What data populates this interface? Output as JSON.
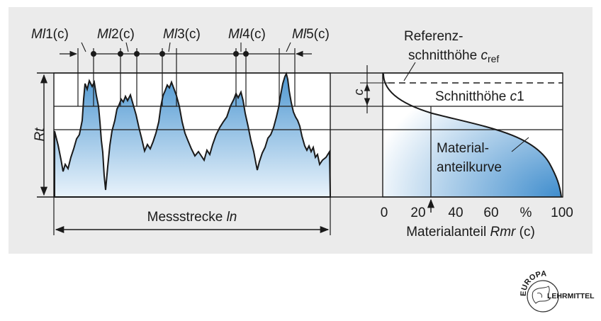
{
  "diagram": {
    "ml_labels": [
      {
        "ml": "Ml",
        "num": "1",
        "suffix": "(c)"
      },
      {
        "ml": "Ml",
        "num": "2",
        "suffix": "(c)"
      },
      {
        "ml": "Ml",
        "num": "3",
        "suffix": "(c)"
      },
      {
        "ml": "Ml",
        "num": "4",
        "suffix": "(c)"
      },
      {
        "ml": "Ml",
        "num": "5",
        "suffix": "(c)"
      }
    ],
    "rt_label": "Rt",
    "length": {
      "text": "Messstrecke ",
      "symbol": "ln"
    },
    "c_label": "c",
    "ref_line1": "Referenz-",
    "ref_line2_text": "schnitthöhe ",
    "ref_line2_symbol": "c",
    "ref_line2_sub": "ref",
    "cut_text": "Schnitthöhe ",
    "cut_symbol": "c",
    "cut_num": "1",
    "curve_line1": "Material-",
    "curve_line2": "anteilkurve",
    "x_ticks": [
      "0",
      "20",
      "40",
      "60",
      "%",
      "100"
    ],
    "x_axis_text": "Materialanteil ",
    "x_axis_symbol": "Rmr",
    "x_axis_suffix": " (c)"
  },
  "logo": {
    "top_text": "EUROPA",
    "side_text": "LEHRMITTEL"
  },
  "colors": {
    "panel": "#ebebeb",
    "fill_dark": "#5a9fd4",
    "fill_light": "#ffffff",
    "line": "#1a1a1a"
  }
}
